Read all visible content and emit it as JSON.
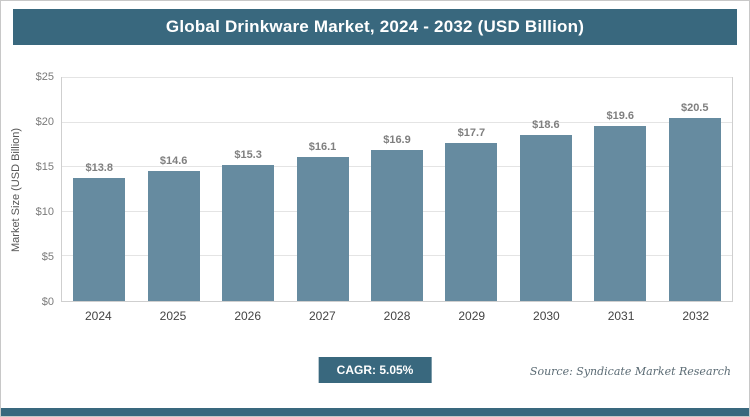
{
  "header": {
    "title": "Global Drinkware Market, 2024 - 2032 (USD Billion)"
  },
  "footer": {
    "cagr": "CAGR: 5.05%",
    "source": "Source: Syndicate Market Research"
  },
  "colors": {
    "accent": "#39687e",
    "bar": "#668ba0",
    "grid": "#e4e4e4",
    "plot_border": "#cfcfcf",
    "tick": "#7a7a7a",
    "bar_label": "#7f7f7f"
  },
  "chart_data": {
    "type": "bar",
    "title": "Global Drinkware Market, 2024 - 2032 (USD Billion)",
    "categories": [
      "2024",
      "2025",
      "2026",
      "2027",
      "2028",
      "2029",
      "2030",
      "2031",
      "2032"
    ],
    "values": [
      13.8,
      14.6,
      15.3,
      16.1,
      16.9,
      17.7,
      18.6,
      19.6,
      20.5
    ],
    "value_labels": [
      "$13.8",
      "$14.6",
      "$15.3",
      "$16.1",
      "$16.9",
      "$17.7",
      "$18.6",
      "$19.6",
      "$20.5"
    ],
    "xlabel": "",
    "ylabel": "Market Size (USD Billion)",
    "ylim": [
      0,
      25
    ],
    "ytick_values": [
      0,
      5,
      10,
      15,
      20,
      25
    ],
    "ytick_labels": [
      "$0",
      "$5",
      "$10",
      "$15",
      "$20",
      "$25"
    ],
    "grid": true,
    "legend": false,
    "cagr": "5.05%"
  }
}
